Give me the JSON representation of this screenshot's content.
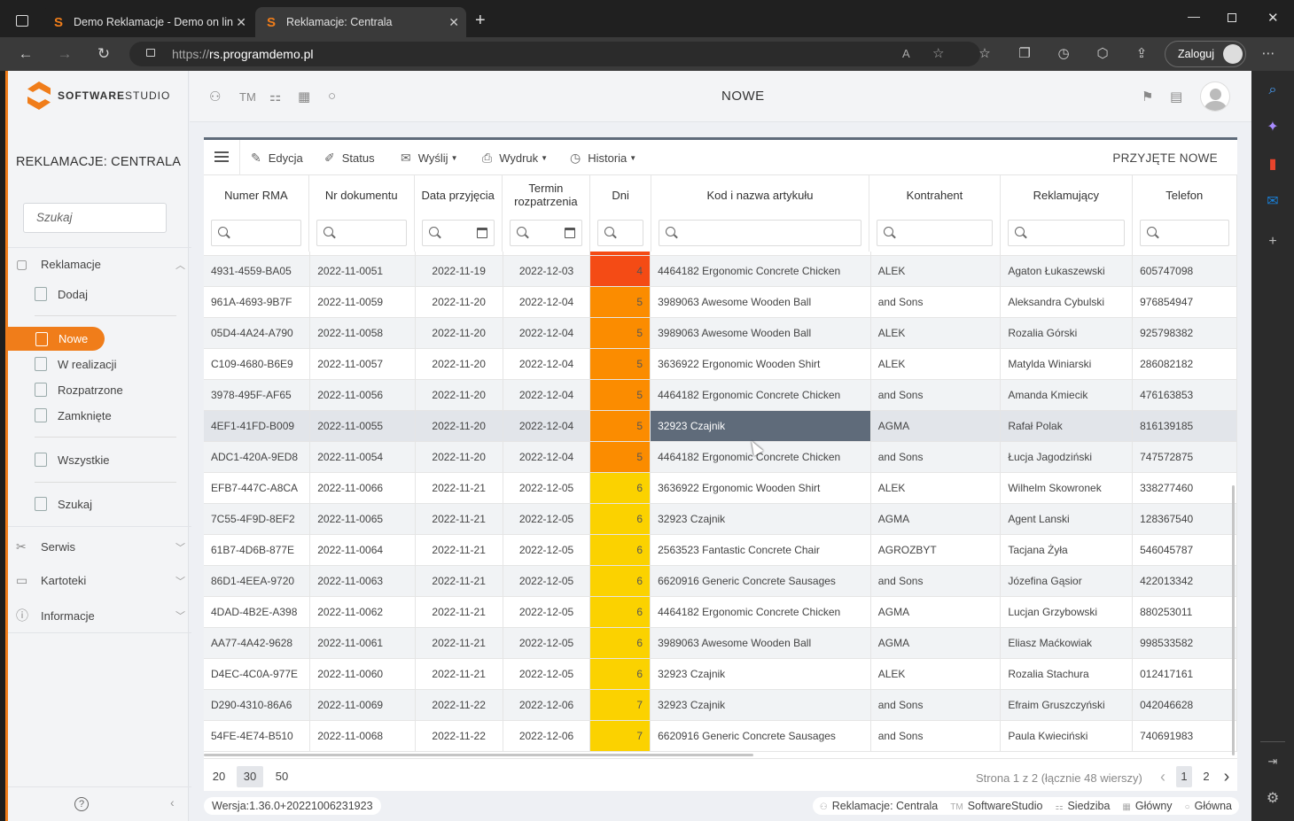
{
  "browser": {
    "tabs": [
      {
        "title": "Demo Reklamacje - Demo on lin",
        "active": false
      },
      {
        "title": "Reklamacje: Centrala",
        "active": true
      }
    ],
    "url_proto": "https://",
    "url_host": "rs.programdemo.pl",
    "login_label": "Zaloguj"
  },
  "app": {
    "logo_text_bold": "SOFTWARE",
    "logo_text_light": "STUDIO",
    "module_title": "REKLAMACJE: CENTRALA",
    "search_placeholder": "Szukaj",
    "header_title": "NOWE",
    "header_icons": [
      "users-icon",
      "tm-icon",
      "org-chart-icon",
      "building-icon",
      "circle-icon"
    ],
    "header_tm": "TM"
  },
  "nav": {
    "reklamacje": "Reklamacje",
    "dodaj": "Dodaj",
    "nowe": "Nowe",
    "w_realizacji": "W realizacji",
    "rozpatrzone": "Rozpatrzone",
    "zamkniete": "Zamknięte",
    "wszystkie": "Wszystkie",
    "szukaj": "Szukaj",
    "serwis": "Serwis",
    "kartoteki": "Kartoteki",
    "informacje": "Informacje"
  },
  "toolbar": {
    "edycja": "Edycja",
    "status": "Status",
    "wyslij": "Wyślij",
    "wydruk": "Wydruk",
    "historia": "Historia",
    "przyjete": "PRZYJĘTE NOWE"
  },
  "columns": [
    "Numer RMA",
    "Nr dokumentu",
    "Data przyjęcia",
    "Termin rozpatrzenia",
    "Dni",
    "Kod i nazwa artykułu",
    "Kontrahent",
    "Reklamujący",
    "Telefon"
  ],
  "colors": {
    "accent": "#f07d1a",
    "red": "#f44b15",
    "orange": "#fb8c00",
    "yellow": "#fbd200",
    "selected": "#5f6b7a"
  },
  "rows": [
    [
      "4931-4559-BA05",
      "2022-11-0051",
      "2022-11-19",
      "2022-12-03",
      "4",
      "4464182 Ergonomic Concrete Chicken",
      "ALEK",
      "Agaton Łukaszewski",
      "605747098"
    ],
    [
      "961A-4693-9B7F",
      "2022-11-0059",
      "2022-11-20",
      "2022-12-04",
      "5",
      "3989063 Awesome Wooden Ball",
      "and Sons",
      "Aleksandra Cybulski",
      "976854947"
    ],
    [
      "05D4-4A24-A790",
      "2022-11-0058",
      "2022-11-20",
      "2022-12-04",
      "5",
      "3989063 Awesome Wooden Ball",
      "ALEK",
      "Rozalia Górski",
      "925798382"
    ],
    [
      "C109-4680-B6E9",
      "2022-11-0057",
      "2022-11-20",
      "2022-12-04",
      "5",
      "3636922 Ergonomic Wooden Shirt",
      "ALEK",
      "Matylda Winiarski",
      "286082182"
    ],
    [
      "3978-495F-AF65",
      "2022-11-0056",
      "2022-11-20",
      "2022-12-04",
      "5",
      "4464182 Ergonomic Concrete Chicken",
      "and Sons",
      "Amanda Kmiecik",
      "476163853"
    ],
    [
      "4EF1-41FD-B009",
      "2022-11-0055",
      "2022-11-20",
      "2022-12-04",
      "5",
      "32923 Czajnik",
      "AGMA",
      "Rafał Polak",
      "816139185"
    ],
    [
      "ADC1-420A-9ED8",
      "2022-11-0054",
      "2022-11-20",
      "2022-12-04",
      "5",
      "4464182 Ergonomic Concrete Chicken",
      "and Sons",
      "Łucja Jagodziński",
      "747572875"
    ],
    [
      "EFB7-447C-A8CA",
      "2022-11-0066",
      "2022-11-21",
      "2022-12-05",
      "6",
      "3636922 Ergonomic Wooden Shirt",
      "ALEK",
      "Wilhelm Skowronek",
      "338277460"
    ],
    [
      "7C55-4F9D-8EF2",
      "2022-11-0065",
      "2022-11-21",
      "2022-12-05",
      "6",
      "32923 Czajnik",
      "AGMA",
      "Agent Lanski",
      "128367540"
    ],
    [
      "61B7-4D6B-877E",
      "2022-11-0064",
      "2022-11-21",
      "2022-12-05",
      "6",
      "2563523 Fantastic Concrete Chair",
      "AGROZBYT",
      "Tacjana Żyła",
      "546045787"
    ],
    [
      "86D1-4EEA-9720",
      "2022-11-0063",
      "2022-11-21",
      "2022-12-05",
      "6",
      "6620916 Generic Concrete Sausages",
      "and Sons",
      "Józefina Gąsior",
      "422013342"
    ],
    [
      "4DAD-4B2E-A398",
      "2022-11-0062",
      "2022-11-21",
      "2022-12-05",
      "6",
      "4464182 Ergonomic Concrete Chicken",
      "AGMA",
      "Lucjan Grzybowski",
      "880253011"
    ],
    [
      "AA77-4A42-9628",
      "2022-11-0061",
      "2022-11-21",
      "2022-12-05",
      "6",
      "3989063 Awesome Wooden Ball",
      "AGMA",
      "Eliasz Maćkowiak",
      "998533582"
    ],
    [
      "D4EC-4C0A-977E",
      "2022-11-0060",
      "2022-11-21",
      "2022-12-05",
      "6",
      "32923 Czajnik",
      "ALEK",
      "Rozalia Stachura",
      "012417161"
    ],
    [
      "D290-4310-86A6",
      "2022-11-0069",
      "2022-11-22",
      "2022-12-06",
      "7",
      "32923 Czajnik",
      "and Sons",
      "Efraim Gruszczyński",
      "042046628"
    ],
    [
      "54FE-4E74-B510",
      "2022-11-0068",
      "2022-11-22",
      "2022-12-06",
      "7",
      "6620916 Generic Concrete Sausages",
      "and Sons",
      "Paula Kwieciński",
      "740691983"
    ]
  ],
  "selected_row": 5,
  "footer": {
    "page_sizes": [
      "20",
      "30",
      "50"
    ],
    "active_page_size": "30",
    "page_info": "Strona 1 z 2 (łącznie 48 wierszy)",
    "pages": [
      "1",
      "2"
    ]
  },
  "status": {
    "version": "Wersja:1.36.0+20221006231923",
    "module": "Reklamacje: Centrala",
    "company": "SoftwareStudio",
    "branch": "Siedziba",
    "warehouse": "Główny",
    "other": "Główna",
    "tm": "TM"
  }
}
